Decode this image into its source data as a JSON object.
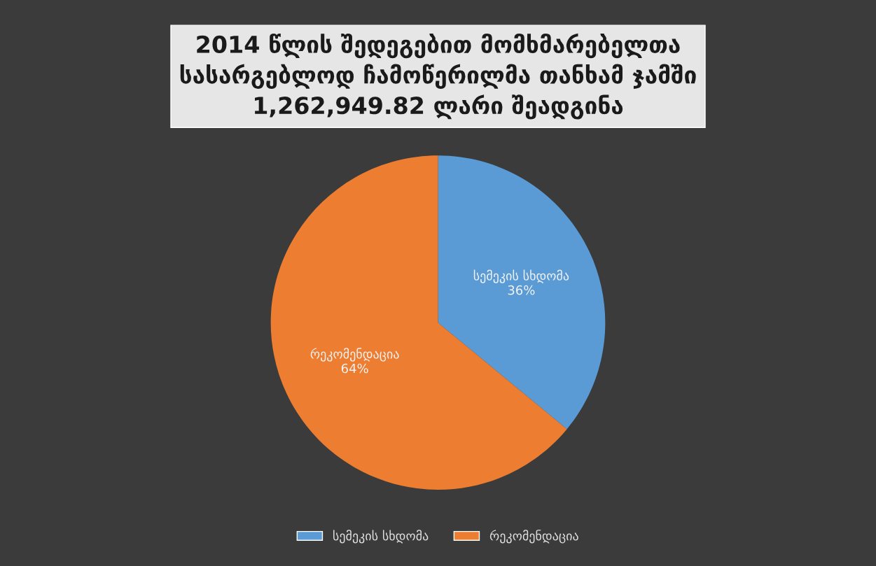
{
  "chart_data": {
    "type": "pie",
    "title": "2014 წლის შედეგებით მომხმარებელთა\nსასარგებლოდ ჩამოწერილმა თანხამ ჯამში\n1,262,949.82 ლარი შეადგინა",
    "categories": [
      "სემეკის სხდომა",
      "რეკომენდაცია"
    ],
    "values": [
      36,
      64
    ],
    "colors": [
      "#5b9bd5",
      "#ed7d31"
    ],
    "value_labels": [
      "36%",
      "64%"
    ],
    "legend": "bottom"
  }
}
